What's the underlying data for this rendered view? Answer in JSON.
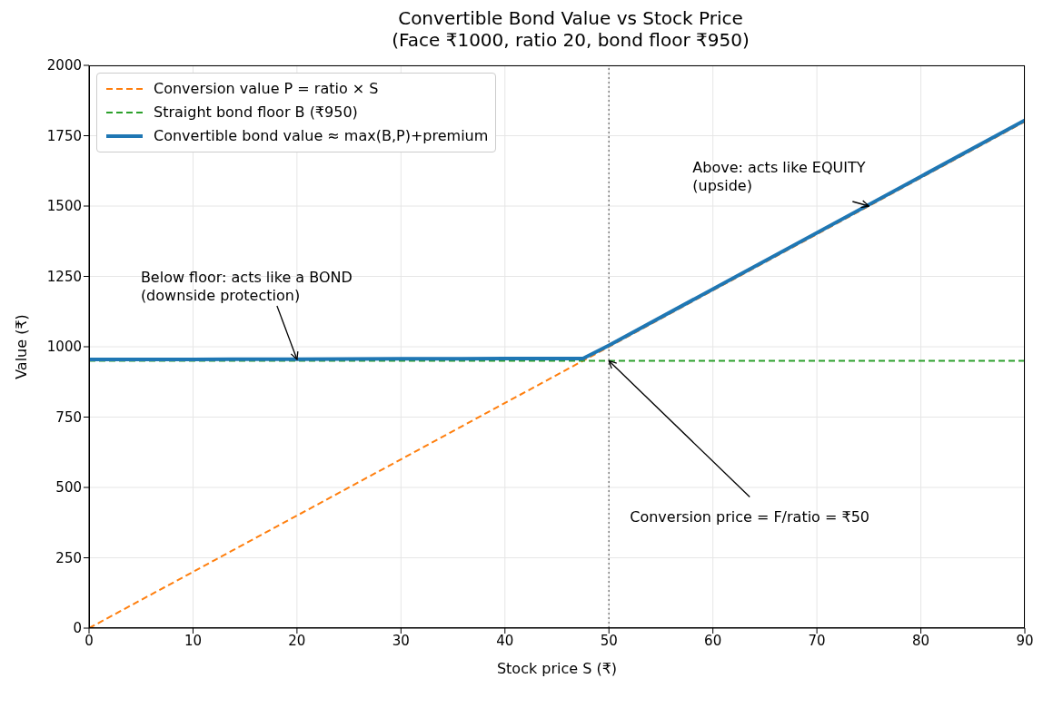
{
  "chart_data": {
    "type": "line",
    "title": "Convertible Bond Value vs Stock Price\n(Face ₹1000, ratio 20, bond floor ₹950)",
    "xlabel": "Stock price S (₹)",
    "ylabel": "Value (₹)",
    "xlim": [
      0,
      90
    ],
    "xticks": [
      0,
      10,
      20,
      30,
      40,
      50,
      60,
      70,
      80,
      90
    ],
    "ylim": [
      0,
      2000
    ],
    "yticks": [
      0,
      250,
      500,
      750,
      1000,
      1250,
      1500,
      1750,
      2000
    ],
    "series": [
      {
        "name": "Conversion value  P = ratio × S",
        "color": "#ff7f0e",
        "line_style": "dashed",
        "x": [
          0,
          90
        ],
        "values": [
          0,
          1800
        ]
      },
      {
        "name": "Straight bond floor  B (₹950)",
        "color": "#2ca02c",
        "line_style": "dashed",
        "x": [
          0,
          90
        ],
        "values": [
          950,
          950
        ]
      },
      {
        "name": "Convertible bond value ≈ max(B,P)+premium",
        "color": "#1f77b4",
        "line_style": "solid",
        "x": [
          0,
          10,
          20,
          30,
          40,
          47.5,
          50,
          60,
          70,
          80,
          90
        ],
        "values": [
          955,
          955,
          956,
          957,
          958,
          958,
          1005,
          1205,
          1405,
          1605,
          1805
        ]
      }
    ],
    "ref_lines": [
      {
        "axis": "x",
        "value": 50,
        "color": "#808080",
        "line_style": "dotted"
      }
    ],
    "annotations": [
      {
        "text": "Below floor: acts like a BOND\n(downside protection)",
        "x": 20,
        "y": 955
      },
      {
        "text": "Above: acts like EQUITY\n(upside)",
        "x": 75,
        "y": 1500
      },
      {
        "text": "Conversion price = F/ratio = ₹50",
        "x": 50,
        "y": 950
      }
    ],
    "grid": true,
    "legend": "top left",
    "marker": "none"
  }
}
